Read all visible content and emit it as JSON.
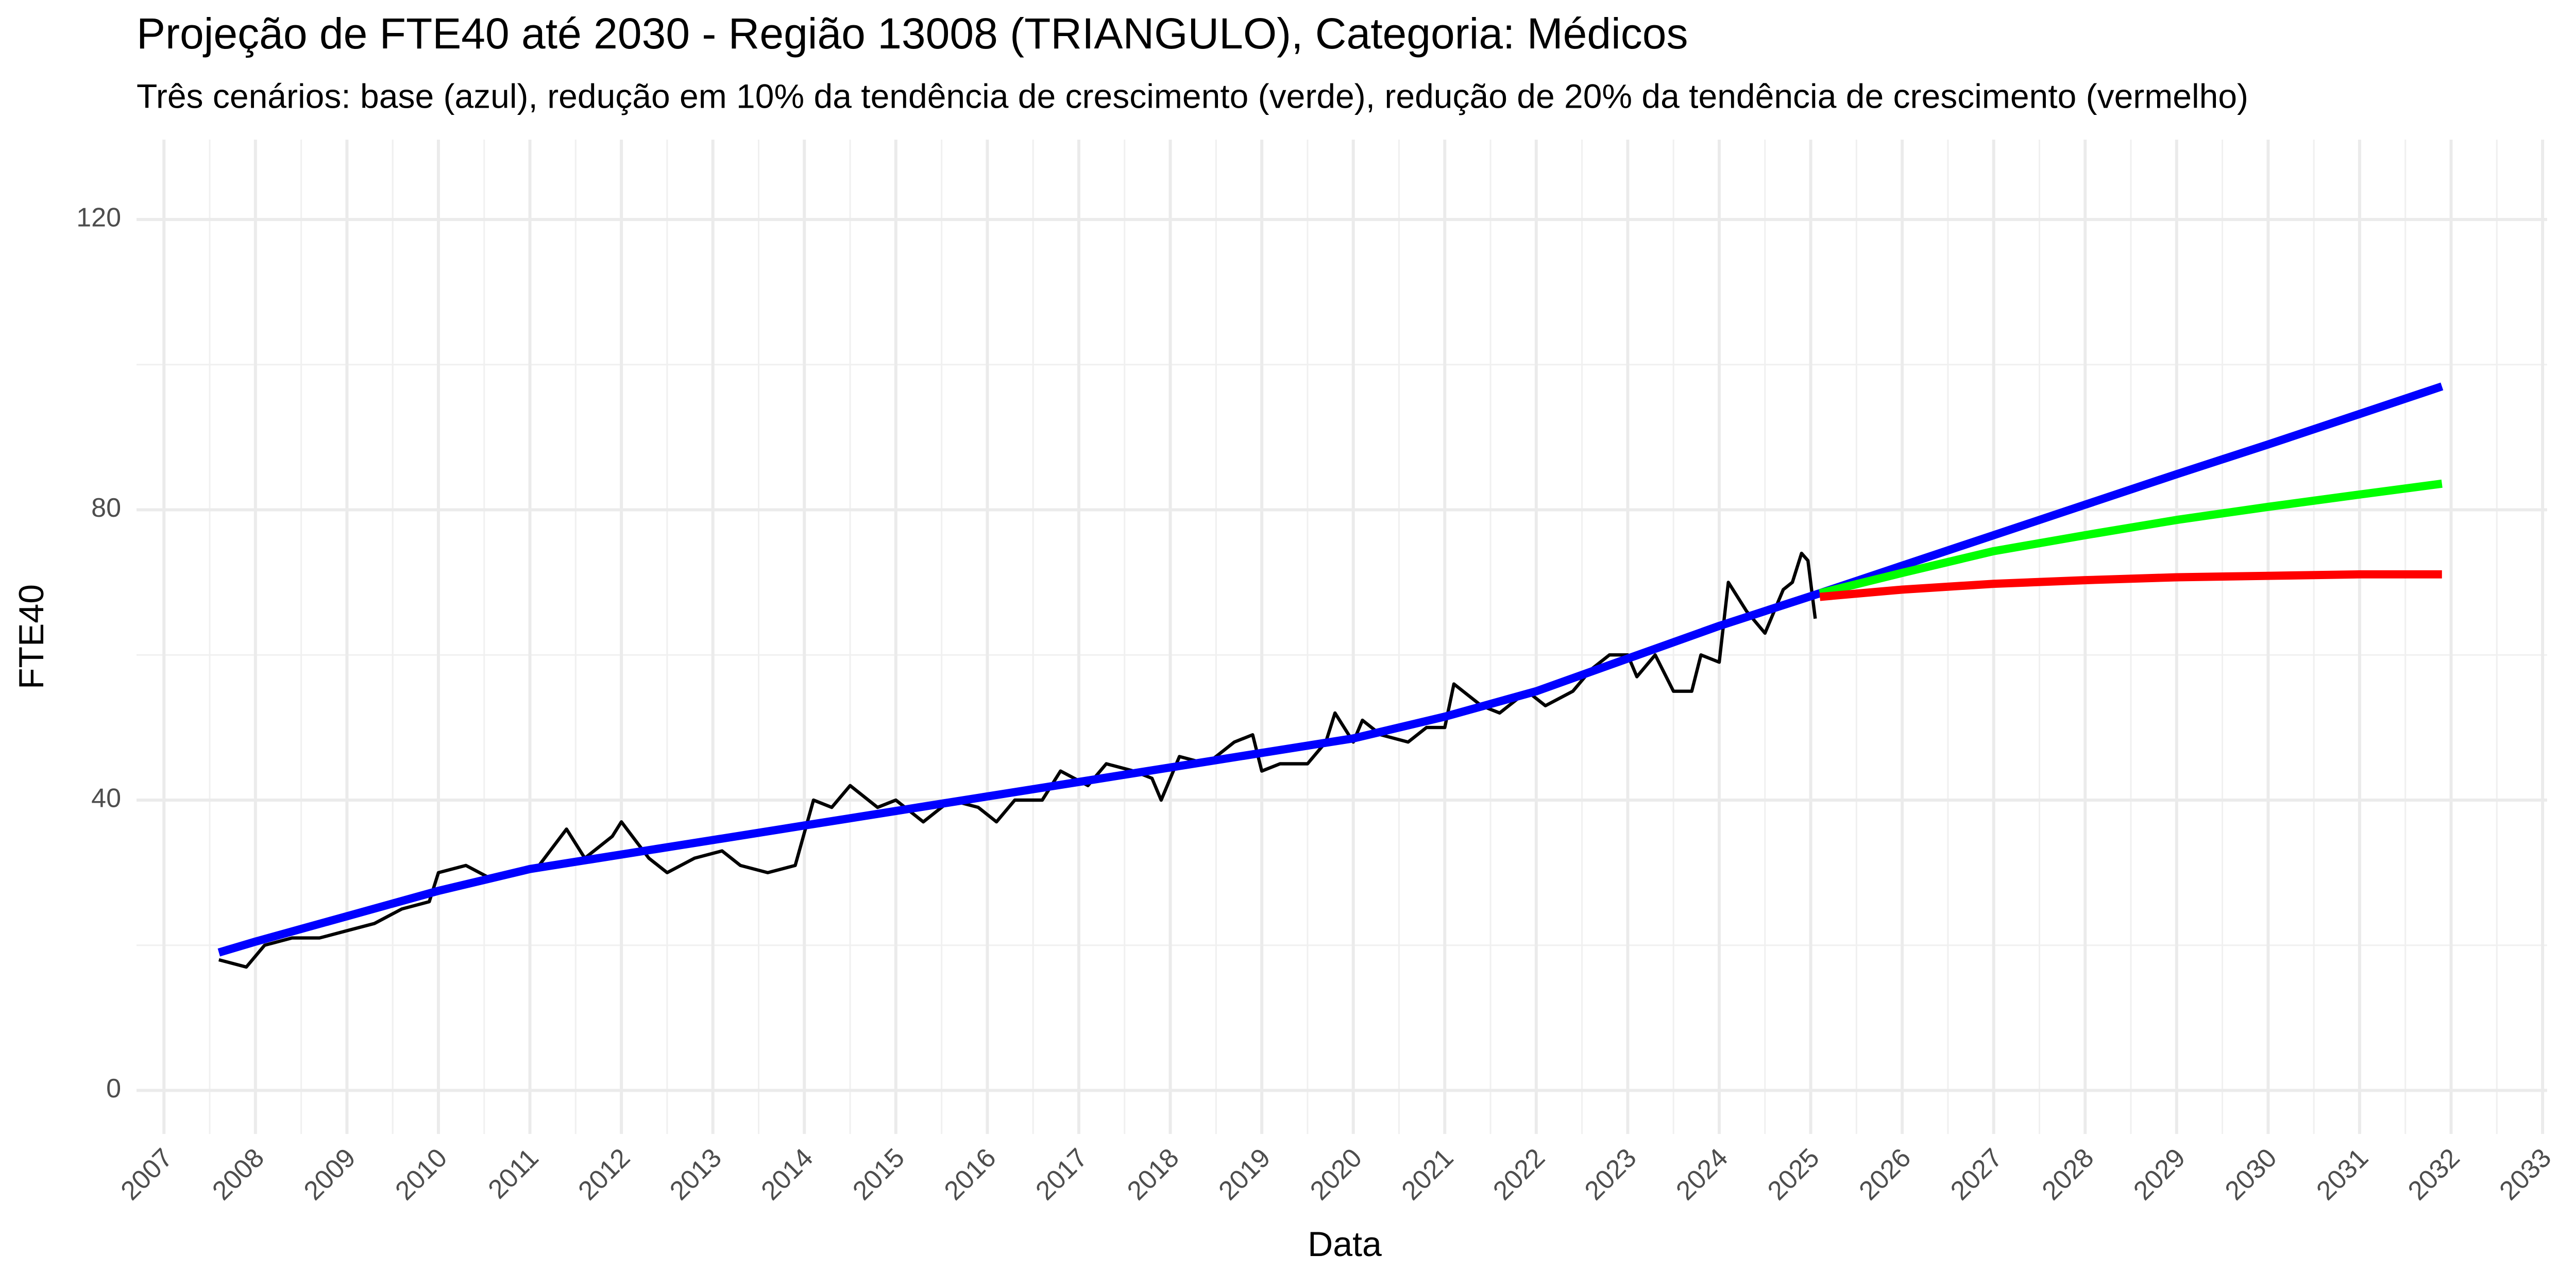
{
  "chart_data": {
    "type": "line",
    "title": "Projeção de FTE40 até 2030 - Região 13008 (TRIANGULO), Categoria: Médicos",
    "subtitle": "Três cenários: base (azul), redução em 10% da tendência de crescimento (verde), redução de 20% da tendência de crescimento (vermelho)",
    "xlabel": "Data",
    "ylabel": "FTE40",
    "xlim": [
      2006.7,
      2033.05
    ],
    "ylim": [
      -6,
      131
    ],
    "xticks": [
      2007,
      2008,
      2009,
      2010,
      2011,
      2012,
      2013,
      2014,
      2015,
      2016,
      2017,
      2018,
      2019,
      2020,
      2021,
      2022,
      2023,
      2024,
      2025,
      2026,
      2027,
      2028,
      2029,
      2030,
      2031,
      2032,
      2033
    ],
    "yticks": [
      0,
      40,
      80,
      120
    ],
    "grid": true,
    "series": [
      {
        "color": "#000000",
        "width": 2,
        "x": [
          2007.6,
          2007.9,
          2008.1,
          2008.4,
          2008.7,
          2009.0,
          2009.3,
          2009.6,
          2009.9,
          2010.0,
          2010.3,
          2010.6,
          2010.9,
          2011.1,
          2011.4,
          2011.6,
          2011.9,
          2012.0,
          2012.3,
          2012.5,
          2012.8,
          2013.1,
          2013.3,
          2013.6,
          2013.9,
          2014.1,
          2014.3,
          2014.5,
          2014.8,
          2015.0,
          2015.3,
          2015.6,
          2015.9,
          2016.1,
          2016.3,
          2016.6,
          2016.8,
          2017.1,
          2017.3,
          2017.6,
          2017.8,
          2017.9,
          2018.1,
          2018.4,
          2018.7,
          2018.9,
          2019.0,
          2019.2,
          2019.5,
          2019.7,
          2019.8,
          2020.0,
          2020.1,
          2020.3,
          2020.6,
          2020.8,
          2021.0,
          2021.1,
          2021.4,
          2021.6,
          2021.9,
          2022.1,
          2022.4,
          2022.6,
          2022.8,
          2023.0,
          2023.1,
          2023.3,
          2023.5,
          2023.7,
          2023.8,
          2024.0,
          2024.1,
          2024.3,
          2024.5,
          2024.7,
          2024.8,
          2024.9,
          2024.97,
          2025.05
        ],
        "values": [
          18,
          17,
          20,
          21,
          21,
          22,
          23,
          25,
          26,
          30,
          31,
          29,
          30,
          31,
          36,
          32,
          35,
          37,
          32,
          30,
          32,
          33,
          31,
          30,
          31,
          40,
          39,
          42,
          39,
          40,
          37,
          40,
          39,
          37,
          40,
          40,
          44,
          42,
          45,
          44,
          43,
          40,
          46,
          45,
          48,
          49,
          44,
          45,
          45,
          48,
          52,
          48,
          51,
          49,
          48,
          50,
          50,
          56,
          53,
          52,
          55,
          53,
          55,
          58,
          60,
          60,
          57,
          60,
          55,
          55,
          60,
          59,
          70,
          66,
          63,
          69,
          70,
          74,
          73,
          65
        ]
      },
      {
        "color": "#0000ff",
        "width": 5,
        "x": [
          2007.6,
          2008,
          2009,
          2010,
          2011,
          2012,
          2013,
          2014,
          2015,
          2016,
          2017,
          2018,
          2019,
          2020,
          2021,
          2022,
          2023,
          2024,
          2025.1,
          2026,
          2027,
          2028,
          2029,
          2030,
          2031,
          2031.9
        ],
        "values": [
          19,
          20.5,
          24,
          27.5,
          30.5,
          32.5,
          34.5,
          36.5,
          38.5,
          40.5,
          42.5,
          44.5,
          46.5,
          48.5,
          51.5,
          55,
          59.5,
          64,
          68.5,
          72.3,
          76.5,
          80.7,
          84.9,
          89,
          93.2,
          97
        ]
      },
      {
        "color": "#00ff00",
        "width": 5,
        "x": [
          2025.1,
          2026,
          2027,
          2028,
          2029,
          2030,
          2031,
          2031.9
        ],
        "values": [
          68.5,
          71.3,
          74.3,
          76.5,
          78.6,
          80.4,
          82.1,
          83.6
        ]
      },
      {
        "color": "#ff0000",
        "width": 5,
        "x": [
          2025.1,
          2026,
          2027,
          2028,
          2029,
          2030,
          2031,
          2031.9
        ],
        "values": [
          68,
          69,
          69.8,
          70.3,
          70.7,
          70.9,
          71.1,
          71.1
        ]
      }
    ]
  }
}
